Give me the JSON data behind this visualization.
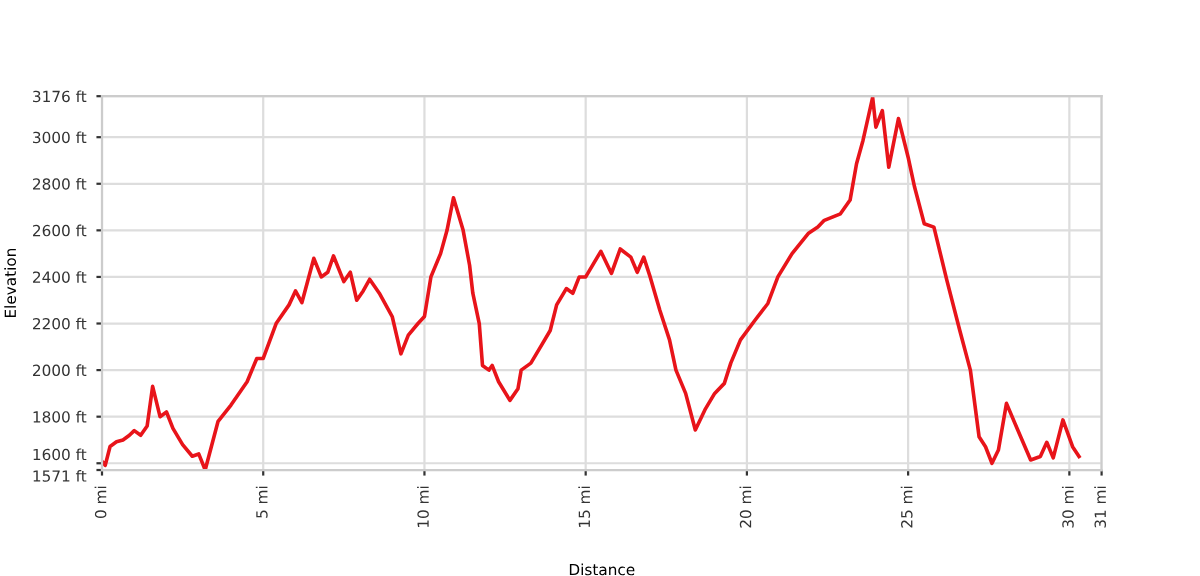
{
  "chart_data": {
    "type": "line",
    "xlabel": "Distance",
    "ylabel": "Elevation",
    "x": [
      0,
      0.1,
      0.25,
      0.45,
      0.65,
      0.85,
      1.0,
      1.2,
      1.4,
      1.57,
      1.8,
      2.0,
      2.2,
      2.5,
      2.8,
      3.0,
      3.2,
      3.6,
      4.0,
      4.5,
      4.8,
      5.0,
      5.4,
      5.8,
      6.0,
      6.2,
      6.57,
      6.8,
      7.0,
      7.18,
      7.5,
      7.7,
      7.9,
      8.1,
      8.3,
      8.6,
      9.0,
      9.27,
      9.5,
      9.8,
      10.0,
      10.2,
      10.5,
      10.7,
      10.9,
      11.2,
      11.4,
      11.5,
      11.7,
      11.8,
      12.0,
      12.1,
      12.3,
      12.65,
      12.9,
      13.0,
      13.3,
      13.6,
      13.9,
      14.1,
      14.4,
      14.6,
      14.8,
      15.0,
      15.47,
      15.8,
      16.07,
      16.4,
      16.6,
      16.8,
      17.0,
      17.3,
      17.6,
      17.8,
      18.1,
      18.4,
      18.7,
      19.0,
      19.3,
      19.5,
      19.8,
      20.25,
      20.65,
      20.96,
      21.4,
      21.9,
      22.2,
      22.4,
      22.9,
      23.2,
      23.4,
      23.6,
      23.9,
      24.0,
      24.2,
      24.4,
      24.7,
      25.0,
      25.2,
      25.5,
      25.8,
      26.2,
      26.6,
      26.93,
      27.2,
      27.4,
      27.6,
      27.8,
      28.05,
      28.4,
      28.8,
      29.1,
      29.3,
      29.5,
      29.8,
      30.1,
      30.3
    ],
    "series": [
      {
        "color": "#e8141a",
        "values": [
          1608,
          1591,
          1672,
          1692,
          1700,
          1720,
          1740,
          1720,
          1760,
          1930,
          1800,
          1820,
          1750,
          1680,
          1630,
          1640,
          1571,
          1780,
          1850,
          1950,
          2050,
          2050,
          2200,
          2280,
          2340,
          2290,
          2480,
          2400,
          2420,
          2490,
          2380,
          2420,
          2300,
          2340,
          2390,
          2330,
          2230,
          2070,
          2150,
          2200,
          2230,
          2400,
          2500,
          2600,
          2740,
          2600,
          2450,
          2330,
          2200,
          2020,
          2000,
          2020,
          1950,
          1870,
          1920,
          2000,
          2030,
          2100,
          2170,
          2280,
          2350,
          2330,
          2400,
          2400,
          2510,
          2415,
          2520,
          2485,
          2420,
          2485,
          2400,
          2257,
          2130,
          2000,
          1900,
          1743,
          1830,
          1900,
          1943,
          2030,
          2130,
          2214,
          2286,
          2400,
          2500,
          2586,
          2614,
          2643,
          2671,
          2730,
          2886,
          2986,
          3171,
          3043,
          3114,
          2871,
          3080,
          2914,
          2786,
          2628,
          2614,
          2386,
          2171,
          2000,
          1714,
          1671,
          1600,
          1657,
          1857,
          1743,
          1614,
          1629,
          1690,
          1623,
          1786,
          1671,
          1629
        ]
      }
    ],
    "xlim": [
      0,
      31
    ],
    "xticks": [
      {
        "value": 0,
        "label": "0 mi"
      },
      {
        "value": 5,
        "label": "5 mi"
      },
      {
        "value": 10,
        "label": "10 mi"
      },
      {
        "value": 15,
        "label": "15 mi"
      },
      {
        "value": 20,
        "label": "20 mi"
      },
      {
        "value": 25,
        "label": "25 mi"
      },
      {
        "value": 30,
        "label": "30 mi"
      },
      {
        "value": 31,
        "label": "31 mi"
      }
    ],
    "ylim": [
      1571,
      3176
    ],
    "yticks": [
      {
        "value": 1571,
        "label": "1571 ft"
      },
      {
        "value": 1600,
        "label": "1600 ft"
      },
      {
        "value": 1800,
        "label": "1800 ft"
      },
      {
        "value": 2000,
        "label": "2000 ft"
      },
      {
        "value": 2200,
        "label": "2200 ft"
      },
      {
        "value": 2400,
        "label": "2400 ft"
      },
      {
        "value": 2600,
        "label": "2600 ft"
      },
      {
        "value": 2800,
        "label": "2800 ft"
      },
      {
        "value": 3000,
        "label": "3000 ft"
      },
      {
        "value": 3176,
        "label": "3176 ft"
      }
    ],
    "grid": true
  }
}
